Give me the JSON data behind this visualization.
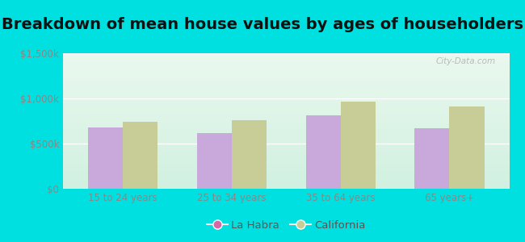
{
  "title": "Breakdown of mean house values by ages of householders",
  "categories": [
    "15 to 24 years",
    "25 to 34 years",
    "35 to 64 years",
    "65 years+"
  ],
  "la_habra_values": [
    680000,
    620000,
    810000,
    670000
  ],
  "california_values": [
    740000,
    760000,
    960000,
    910000
  ],
  "la_habra_color": "#c9a8dc",
  "california_color": "#c8cc96",
  "ylim": [
    0,
    1500000
  ],
  "ytick_labels": [
    "$0",
    "$500k",
    "$1,000k",
    "$1,500k"
  ],
  "ytick_values": [
    0,
    500000,
    1000000,
    1500000
  ],
  "background_outer": "#00e0e0",
  "grad_top": "#eaf8ee",
  "grad_bottom": "#d0f0e0",
  "grid_color": "#ffffff",
  "title_fontsize": 14,
  "tick_fontsize": 8.5,
  "legend_fontsize": 9.5,
  "bar_width": 0.32,
  "watermark": "City-Data.com",
  "legend_la_color": "#d966a8",
  "legend_ca_color": "#c8cc96"
}
